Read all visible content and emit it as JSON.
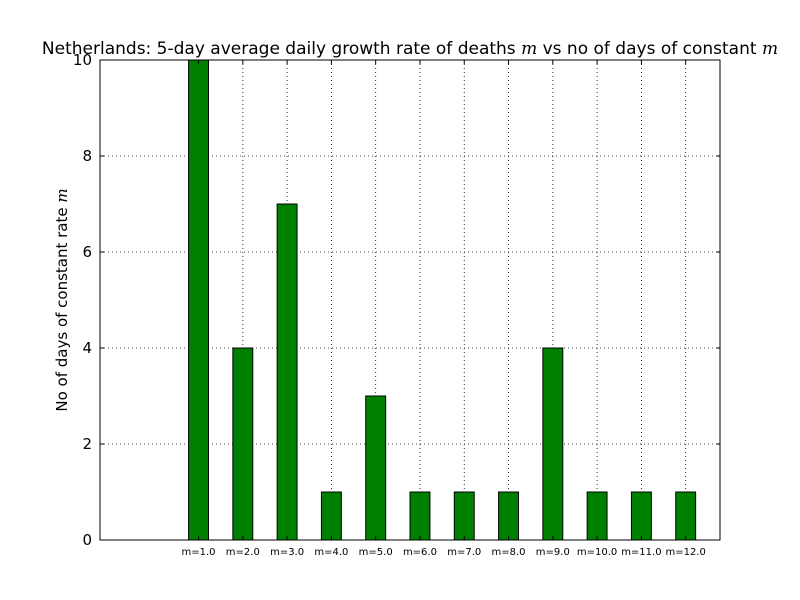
{
  "chart_data": {
    "type": "bar",
    "title": "Netherlands: 5-day average daily growth rate of deaths",
    "title_math_1": "m",
    "title_middle": "vs no of days of constant",
    "title_math_2": "m",
    "xlabel": "",
    "ylabel": "No of days of constant rate",
    "ylabel_math": "m",
    "categories": [
      "m=1.0",
      "m=2.0",
      "m=3.0",
      "m=4.0",
      "m=5.0",
      "m=6.0",
      "m=7.0",
      "m=8.0",
      "m=9.0",
      "m=10.0",
      "m=11.0",
      "m=12.0"
    ],
    "values": [
      10,
      4,
      7,
      1,
      3,
      1,
      1,
      1,
      4,
      1,
      1,
      1
    ],
    "ylim": [
      0,
      10
    ],
    "yticks": [
      "0",
      "2",
      "4",
      "6",
      "8",
      "10"
    ],
    "grid": true,
    "bar_color": "#008000",
    "edge_color": "#000000"
  }
}
